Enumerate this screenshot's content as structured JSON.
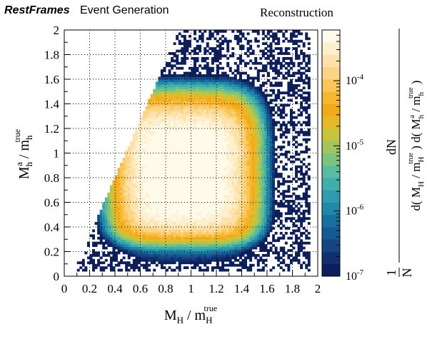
{
  "header": {
    "brand": "RestFrames",
    "subtitle": "Event Generation",
    "panel_label": "Reconstruction"
  },
  "chart_data": {
    "type": "heatmap",
    "x_ticks": [
      "0",
      "0.2",
      "0.4",
      "0.6",
      "0.8",
      "1",
      "1.2",
      "1.4",
      "1.6",
      "1.8",
      "2"
    ],
    "y_ticks": [
      "0",
      "0.2",
      "0.4",
      "0.6",
      "0.8",
      "1",
      "1.2",
      "1.4",
      "1.6",
      "1.8",
      "2"
    ],
    "xlim": [
      0,
      2
    ],
    "ylim": [
      0,
      2
    ],
    "grid": true,
    "z_scale": "log",
    "zlim": [
      1e-07,
      0.0006
    ],
    "colorbar_ticks": [
      {
        "mant": "10",
        "exp": "-7",
        "value": 1e-07
      },
      {
        "mant": "10",
        "exp": "-6",
        "value": 1e-06
      },
      {
        "mant": "10",
        "exp": "-5",
        "value": 1e-05
      },
      {
        "mant": "10",
        "exp": "-4",
        "value": 0.0001
      }
    ],
    "peak": {
      "x": 0.95,
      "y": 0.85
    },
    "xlabel": {
      "main": "M",
      "sub": "H",
      "div": " / m",
      "sub2": "H",
      "sup2": "true"
    },
    "ylabel": {
      "main": "M",
      "sub": "h",
      "sup": "a",
      "div": " / m",
      "sub2": "h",
      "sup2": "true"
    },
    "zlabel": {
      "numer": "dN",
      "lead": "1",
      "leadDen": "N",
      "den1": {
        "pre": "d( M",
        "sub": "H",
        "mid": " / m",
        "sub2": "H",
        "sup2": "true",
        "post": " )"
      },
      "den2": {
        "pre": " d( M",
        "sub": "h",
        "sup": "a",
        "mid": " / m",
        "sub2": "h",
        "sup2": "true",
        "post": " )"
      }
    },
    "palette": [
      "#0d1e5c",
      "#11306f",
      "#154582",
      "#165a92",
      "#17709f",
      "#2088a8",
      "#2e9cae",
      "#3fafab",
      "#58bd9e",
      "#7cc47e",
      "#a2c55d",
      "#c6c33d",
      "#e5b927",
      "#f3aa17",
      "#f7b630",
      "#f9c658",
      "#fbd583",
      "#fde3ab",
      "#fef0ce",
      "#fffaea"
    ],
    "colors": {
      "background": "#ffffff",
      "grid": "#000000"
    }
  }
}
